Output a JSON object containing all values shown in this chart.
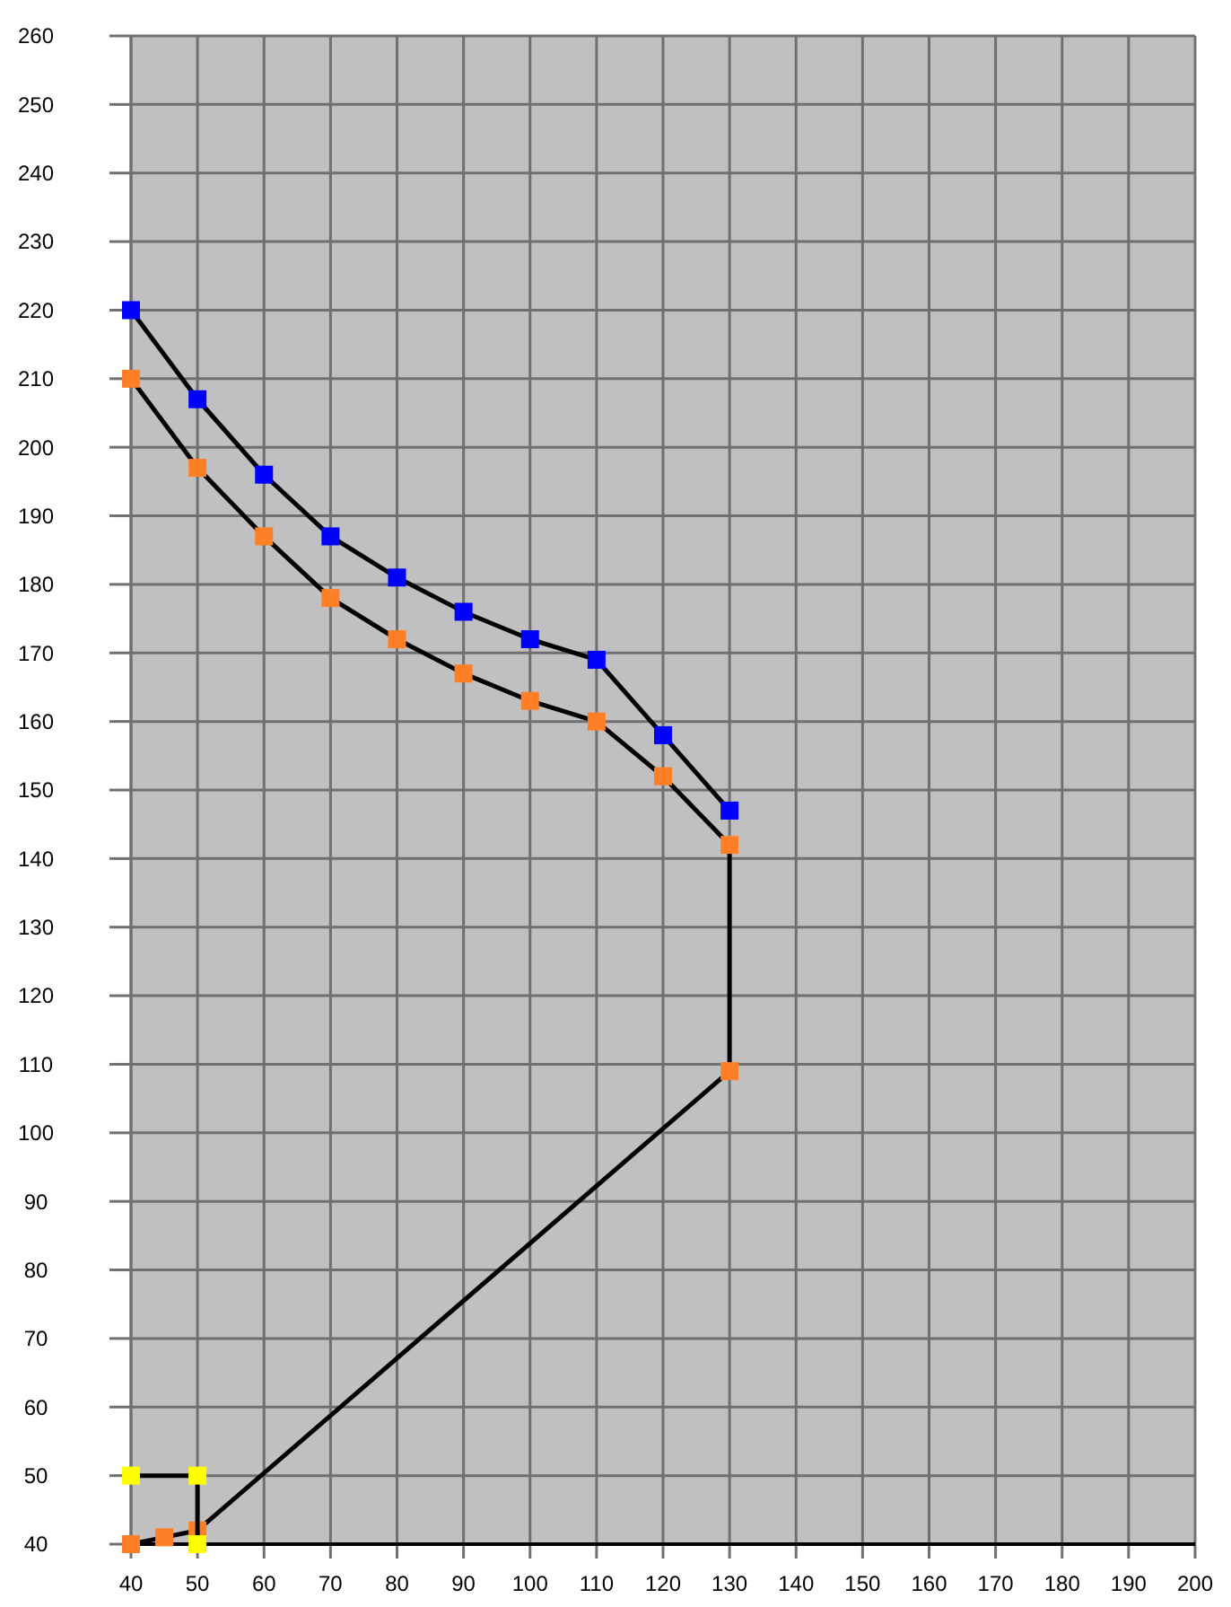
{
  "chart_data": {
    "type": "line",
    "marker": "square",
    "grid": true,
    "xlim": [
      40,
      200
    ],
    "xticks": [
      40,
      50,
      60,
      70,
      80,
      90,
      100,
      110,
      120,
      130,
      140,
      150,
      160,
      170,
      180,
      190,
      200
    ],
    "ylim": [
      40,
      260
    ],
    "yticks": [
      40,
      50,
      60,
      70,
      80,
      90,
      100,
      110,
      120,
      130,
      140,
      150,
      160,
      170,
      180,
      190,
      200,
      210,
      220,
      230,
      240,
      250,
      260
    ],
    "series": [
      {
        "color": "#0000ff",
        "x": [
          40,
          50,
          60,
          70,
          80,
          90,
          100,
          110,
          120,
          130
        ],
        "values": [
          220,
          207,
          196,
          187,
          181,
          176,
          172,
          169,
          158,
          147
        ]
      },
      {
        "color": "#ff7f27",
        "x": [
          40,
          45,
          50,
          130,
          130,
          120,
          110,
          100,
          90,
          80,
          70,
          60,
          50,
          40
        ],
        "values": [
          40,
          41,
          42,
          109,
          142,
          152,
          160,
          163,
          167,
          172,
          178,
          187,
          197,
          210
        ]
      },
      {
        "color": "#ffff00",
        "x": [
          40,
          50,
          50
        ],
        "values": [
          50,
          50,
          40
        ]
      }
    ]
  }
}
